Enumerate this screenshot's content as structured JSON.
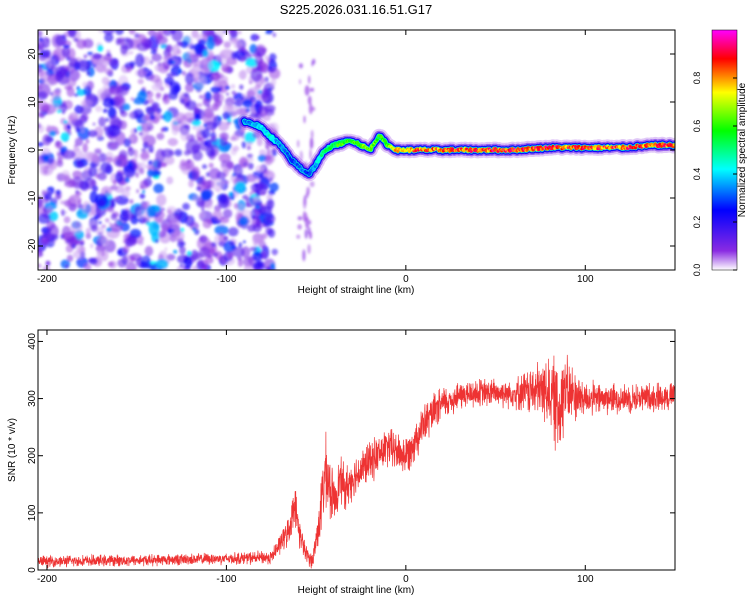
{
  "title": "S225.2026.031.16.51.G17",
  "colorbar": {
    "label": "Normalized spectral amplitude",
    "ticks": [
      0.0,
      0.2,
      0.4,
      0.6,
      0.8
    ],
    "tick_labels": [
      "0.0",
      "0.2",
      "0.4",
      "0.6",
      "0.8"
    ],
    "stops": [
      "#ffffff",
      "#8a2be2",
      "#0000ff",
      "#00ffff",
      "#00ff00",
      "#ffff00",
      "#ff0000",
      "#ff00ff"
    ]
  },
  "chart_data": [
    {
      "type": "heatmap",
      "title": "S225.2026.031.16.51.G17",
      "xlabel": "Height of straight line (km)",
      "ylabel": "Frequency (Hz)",
      "xlim": [
        -205,
        150
      ],
      "ylim": [
        -25,
        25
      ],
      "xticks": [
        -200,
        -100,
        0,
        100
      ],
      "xtick_labels": [
        "-200",
        "-100",
        "0",
        "100"
      ],
      "yticks": [
        -20,
        -10,
        0,
        10,
        20
      ],
      "ytick_labels": [
        "-20",
        "-10",
        "0",
        "10",
        "20"
      ],
      "noise_region": {
        "x": [
          -205,
          -73
        ],
        "freq": [
          -25,
          25
        ],
        "level": 0.15
      },
      "sparse_region": {
        "x": [
          -60,
          -50
        ],
        "freq": [
          -23,
          20
        ]
      },
      "ridge": {
        "x": [
          -90,
          -82,
          -76,
          -70,
          -64,
          -58,
          -54,
          -50,
          -45,
          -40,
          -30,
          -20,
          -15,
          -10,
          -5,
          0,
          20,
          40,
          60,
          80,
          100,
          120,
          140,
          150
        ],
        "freq": [
          6,
          5,
          3,
          1,
          -2,
          -4,
          -5,
          -3,
          0,
          1,
          2,
          0,
          3,
          1,
          0,
          0,
          0,
          0,
          0,
          0.5,
          0.5,
          0.5,
          1,
          1
        ],
        "amplitude": [
          0.35,
          0.4,
          0.45,
          0.35,
          0.3,
          0.35,
          0.3,
          0.4,
          0.55,
          0.6,
          0.65,
          0.7,
          0.6,
          0.7,
          0.8,
          0.85,
          0.9,
          0.9,
          0.92,
          0.9,
          0.88,
          0.9,
          0.9,
          0.88
        ]
      }
    },
    {
      "type": "line",
      "title": "",
      "xlabel": "Height of straight line (km)",
      "ylabel": "SNR (10 * v/v)",
      "xlim": [
        -205,
        150
      ],
      "ylim": [
        0,
        420
      ],
      "xticks": [
        -200,
        -100,
        0,
        100
      ],
      "xtick_labels": [
        "-200",
        "-100",
        "0",
        "100"
      ],
      "yticks": [
        0,
        100,
        200,
        300,
        400
      ],
      "ytick_labels": [
        "0",
        "100",
        "200",
        "300",
        "400"
      ],
      "series": [
        {
          "name": "SNR",
          "color": "#ee3333",
          "x": [
            -205,
            -150,
            -100,
            -75,
            -65,
            -62,
            -60,
            -56,
            -52,
            -48,
            -45,
            -40,
            -38,
            -36,
            -34,
            -30,
            -20,
            -10,
            0,
            10,
            20,
            30,
            40,
            60,
            80,
            85,
            88,
            90,
            100,
            120,
            150
          ],
          "mean": [
            15,
            17,
            20,
            22,
            70,
            120,
            75,
            30,
            15,
            90,
            170,
            120,
            145,
            160,
            140,
            160,
            190,
            215,
            200,
            255,
            290,
            305,
            310,
            310,
            315,
            280,
            320,
            310,
            300,
            300,
            305
          ],
          "spread": [
            10,
            10,
            10,
            12,
            25,
            35,
            30,
            15,
            15,
            40,
            70,
            40,
            40,
            40,
            40,
            35,
            35,
            35,
            35,
            35,
            30,
            25,
            25,
            25,
            60,
            90,
            80,
            60,
            30,
            25,
            25
          ]
        }
      ]
    }
  ]
}
